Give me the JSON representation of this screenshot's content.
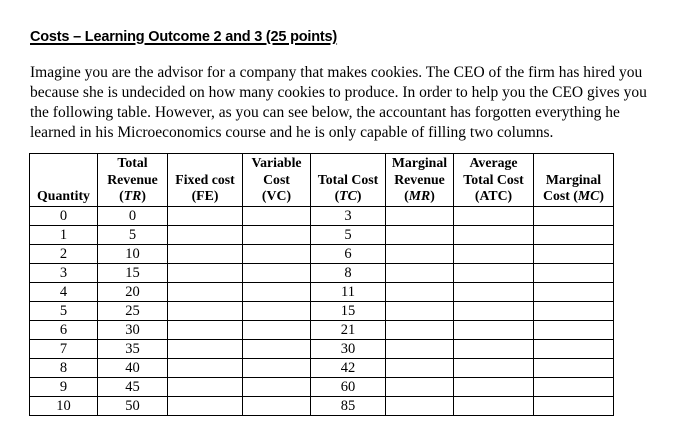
{
  "title": "Costs – Learning Outcome 2 and 3 (25 points)",
  "paragraph_lines": [
    "Imagine you are the advisor for a company that makes cookies. The CEO of the firm has hired you",
    "because she is undecided on how many cookies to produce. In order to help you the CEO gives you",
    "the following table. However, as you can see below, the accountant has forgotten everything he",
    "learned in his Microeconomics course and he is only capable of filling two columns."
  ],
  "table": {
    "columns": [
      {
        "id": "quantity",
        "lines": [
          "Quantity"
        ],
        "code": null
      },
      {
        "id": "total-revenue",
        "lines": [
          "Total",
          "Revenue"
        ],
        "code": {
          "pre": "(",
          "text": "TR",
          "post": ")",
          "italic": true
        }
      },
      {
        "id": "fixed-cost",
        "lines": [
          "Fixed cost"
        ],
        "code": {
          "pre": "(",
          "text": "FE",
          "post": ")",
          "italic": false
        }
      },
      {
        "id": "variable-cost",
        "lines": [
          "Variable",
          "Cost"
        ],
        "code": {
          "pre": "(",
          "text": "VC",
          "post": ")",
          "italic": false
        }
      },
      {
        "id": "total-cost",
        "lines": [
          "Total Cost"
        ],
        "code": {
          "pre": "(",
          "text": "TC",
          "post": ")",
          "italic": true
        }
      },
      {
        "id": "marginal-revenue",
        "lines": [
          "Marginal",
          "Revenue"
        ],
        "code": {
          "pre": "(",
          "text": "MR",
          "post": ")",
          "italic": true
        }
      },
      {
        "id": "average-total-cost",
        "lines": [
          "Average",
          "Total Cost"
        ],
        "code": {
          "pre": "(",
          "text": "ATC",
          "post": ")",
          "italic": false
        }
      },
      {
        "id": "marginal-cost",
        "lines": [
          "Marginal"
        ],
        "code": {
          "pre": "Cost (",
          "text": "MC",
          "post": ")",
          "italic": true
        }
      }
    ],
    "rows": [
      [
        "0",
        "0",
        "",
        "",
        "3",
        "",
        "",
        ""
      ],
      [
        "1",
        "5",
        "",
        "",
        "5",
        "",
        "",
        ""
      ],
      [
        "2",
        "10",
        "",
        "",
        "6",
        "",
        "",
        ""
      ],
      [
        "3",
        "15",
        "",
        "",
        "8",
        "",
        "",
        ""
      ],
      [
        "4",
        "20",
        "",
        "",
        "11",
        "",
        "",
        ""
      ],
      [
        "5",
        "25",
        "",
        "",
        "15",
        "",
        "",
        ""
      ],
      [
        "6",
        "30",
        "",
        "",
        "21",
        "",
        "",
        ""
      ],
      [
        "7",
        "35",
        "",
        "",
        "30",
        "",
        "",
        ""
      ],
      [
        "8",
        "40",
        "",
        "",
        "42",
        "",
        "",
        ""
      ],
      [
        "9",
        "45",
        "",
        "",
        "60",
        "",
        "",
        ""
      ],
      [
        "10",
        "50",
        "",
        "",
        "85",
        "",
        "",
        ""
      ]
    ]
  }
}
